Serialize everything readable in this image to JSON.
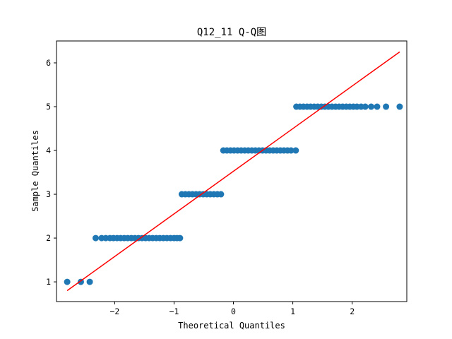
{
  "chart_data": {
    "type": "scatter",
    "title": "Q12_11 Q-Q图",
    "xlabel": "Theoretical Quantiles",
    "ylabel": "Sample Quantiles",
    "xlim": [
      -2.98,
      2.92
    ],
    "ylim": [
      0.55,
      6.5
    ],
    "xticks": [
      -2,
      -1,
      0,
      1,
      2
    ],
    "xtick_labels": [
      "−2",
      "−1",
      "0",
      "1",
      "2"
    ],
    "yticks": [
      1,
      2,
      3,
      4,
      5,
      6
    ],
    "ytick_labels": [
      "1",
      "2",
      "3",
      "4",
      "5",
      "6"
    ],
    "grid": false,
    "marker_color": "#1f77b4",
    "line_color": "#ff0000",
    "reference_line": {
      "x": [
        -2.8,
        2.8
      ],
      "y": [
        0.8,
        6.25
      ]
    },
    "points": [
      {
        "x": -2.8,
        "y": 1
      },
      {
        "x": -2.57,
        "y": 1
      },
      {
        "x": -2.42,
        "y": 1
      },
      {
        "x": -2.32,
        "y": 2
      },
      {
        "x": -2.22,
        "y": 2
      },
      {
        "x": -2.15,
        "y": 2
      },
      {
        "x": -2.08,
        "y": 2
      },
      {
        "x": -2.02,
        "y": 2
      },
      {
        "x": -1.96,
        "y": 2
      },
      {
        "x": -1.9,
        "y": 2
      },
      {
        "x": -1.84,
        "y": 2
      },
      {
        "x": -1.78,
        "y": 2
      },
      {
        "x": -1.72,
        "y": 2
      },
      {
        "x": -1.66,
        "y": 2
      },
      {
        "x": -1.6,
        "y": 2
      },
      {
        "x": -1.54,
        "y": 2
      },
      {
        "x": -1.48,
        "y": 2
      },
      {
        "x": -1.42,
        "y": 2
      },
      {
        "x": -1.36,
        "y": 2
      },
      {
        "x": -1.3,
        "y": 2
      },
      {
        "x": -1.24,
        "y": 2
      },
      {
        "x": -1.18,
        "y": 2
      },
      {
        "x": -1.12,
        "y": 2
      },
      {
        "x": -1.06,
        "y": 2
      },
      {
        "x": -1.0,
        "y": 2
      },
      {
        "x": -0.95,
        "y": 2
      },
      {
        "x": -0.9,
        "y": 2
      },
      {
        "x": -0.87,
        "y": 3
      },
      {
        "x": -0.81,
        "y": 3
      },
      {
        "x": -0.75,
        "y": 3
      },
      {
        "x": -0.69,
        "y": 3
      },
      {
        "x": -0.63,
        "y": 3
      },
      {
        "x": -0.57,
        "y": 3
      },
      {
        "x": -0.51,
        "y": 3
      },
      {
        "x": -0.45,
        "y": 3
      },
      {
        "x": -0.39,
        "y": 3
      },
      {
        "x": -0.33,
        "y": 3
      },
      {
        "x": -0.27,
        "y": 3
      },
      {
        "x": -0.21,
        "y": 3
      },
      {
        "x": -0.17,
        "y": 4
      },
      {
        "x": -0.11,
        "y": 4
      },
      {
        "x": -0.05,
        "y": 4
      },
      {
        "x": 0.01,
        "y": 4
      },
      {
        "x": 0.07,
        "y": 4
      },
      {
        "x": 0.13,
        "y": 4
      },
      {
        "x": 0.19,
        "y": 4
      },
      {
        "x": 0.25,
        "y": 4
      },
      {
        "x": 0.31,
        "y": 4
      },
      {
        "x": 0.37,
        "y": 4
      },
      {
        "x": 0.43,
        "y": 4
      },
      {
        "x": 0.49,
        "y": 4
      },
      {
        "x": 0.55,
        "y": 4
      },
      {
        "x": 0.61,
        "y": 4
      },
      {
        "x": 0.67,
        "y": 4
      },
      {
        "x": 0.73,
        "y": 4
      },
      {
        "x": 0.79,
        "y": 4
      },
      {
        "x": 0.85,
        "y": 4
      },
      {
        "x": 0.91,
        "y": 4
      },
      {
        "x": 0.97,
        "y": 4
      },
      {
        "x": 1.05,
        "y": 4
      },
      {
        "x": 1.06,
        "y": 5
      },
      {
        "x": 1.12,
        "y": 5
      },
      {
        "x": 1.18,
        "y": 5
      },
      {
        "x": 1.24,
        "y": 5
      },
      {
        "x": 1.3,
        "y": 5
      },
      {
        "x": 1.36,
        "y": 5
      },
      {
        "x": 1.42,
        "y": 5
      },
      {
        "x": 1.48,
        "y": 5
      },
      {
        "x": 1.54,
        "y": 5
      },
      {
        "x": 1.6,
        "y": 5
      },
      {
        "x": 1.66,
        "y": 5
      },
      {
        "x": 1.72,
        "y": 5
      },
      {
        "x": 1.78,
        "y": 5
      },
      {
        "x": 1.84,
        "y": 5
      },
      {
        "x": 1.9,
        "y": 5
      },
      {
        "x": 1.96,
        "y": 5
      },
      {
        "x": 2.02,
        "y": 5
      },
      {
        "x": 2.08,
        "y": 5
      },
      {
        "x": 2.15,
        "y": 5
      },
      {
        "x": 2.22,
        "y": 5
      },
      {
        "x": 2.32,
        "y": 5
      },
      {
        "x": 2.42,
        "y": 5
      },
      {
        "x": 2.57,
        "y": 5
      },
      {
        "x": 2.8,
        "y": 5
      }
    ]
  }
}
